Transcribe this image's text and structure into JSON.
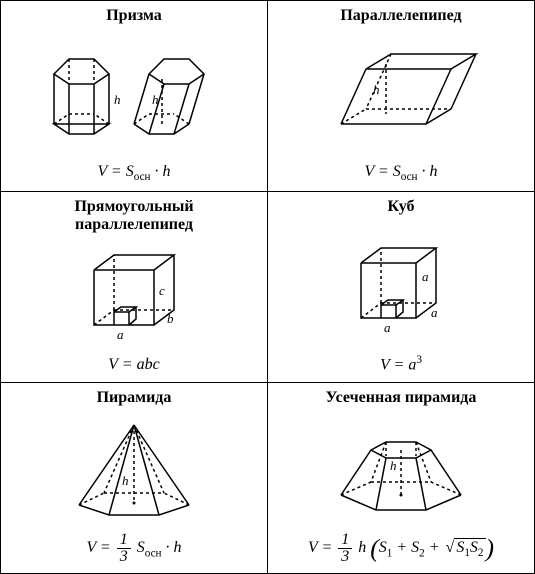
{
  "grid": {
    "rows": 3,
    "cols": 2,
    "border_color": "#000000",
    "background": "#ffffff"
  },
  "typography": {
    "title_weight": "bold",
    "title_size": 14,
    "formula_style": "italic",
    "formula_size": 14,
    "label_size": 13
  },
  "cells": {
    "prism": {
      "title": "Призма",
      "type": "prism",
      "label_h": "h",
      "formula_html": "<i>V</i> = <i>S</i><span class='sub'>осн</span> · <i>h</i>"
    },
    "parallelepiped": {
      "title": "Параллелепипед",
      "type": "oblique-box",
      "label_h": "h",
      "formula_html": "<i>V</i> = <i>S</i><span class='sub'>осн</span> · <i>h</i>"
    },
    "rect_box": {
      "title": "Прямоугольный<br>параллелепипед",
      "type": "rect-box",
      "label_a": "a",
      "label_b": "b",
      "label_c": "c",
      "formula_html": "<i>V</i> = <i>abc</i>"
    },
    "cube": {
      "title": "Куб",
      "type": "cube",
      "label_a": "a",
      "formula_html": "<i>V</i> = <i>a</i><span class='sup'>3</span>"
    },
    "pyramid": {
      "title": "Пирамида",
      "type": "pyramid",
      "label_h": "h",
      "formula_html": "<i>V</i> = <span class='frac'><span class='num'>1</span><span class='den'>3</span></span> <i>S</i><span class='sub'>осн</span> · <i>h</i>"
    },
    "frustum": {
      "title": "Усеченная пирамида",
      "type": "frustum",
      "label_h": "h",
      "formula_html": "<i>V</i> = <span class='frac'><span class='num'>1</span><span class='den'>3</span></span> <i>h</i> <span class='big-paren'>(</span><i>S</i><span class='sub'>1</span> + <i>S</i><span class='sub'>2</span> + <span class='sqrt'>√<span class='radicand'><i>S</i><span class='sub'>1</span><i>S</i><span class='sub'>2</span></span></span><span class='big-paren'>)</span>"
    }
  }
}
